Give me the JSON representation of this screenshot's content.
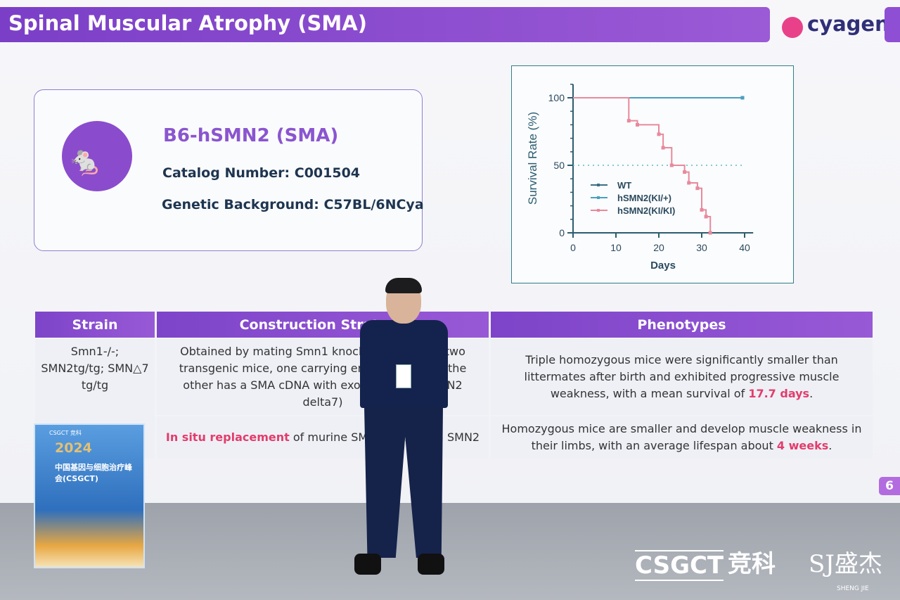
{
  "slide": {
    "title": "Spinal Muscular Atrophy (SMA)",
    "logo_text": "cyagen",
    "model_name": "B6-hSMN2 (SMA)",
    "catalog": "Catalog Number: C001504",
    "background": "Genetic Background: C57BL/6NCya",
    "page_number": "6",
    "table": {
      "headers": [
        "Strain",
        "Construction Strategy",
        "Phenotypes"
      ],
      "rows": [
        {
          "strain": "Smn1-/-; SMN2tg/tg; SMN△7 tg/tg",
          "strategy": "Obtained by mating Smn1 knockout mice with two transgenic mice, one carrying entire SMN2 and the other has a SMA cDNA with exon 7 lacking (SMN2 delta7)",
          "phenotype_pre": "Triple homozygous mice were significantly smaller than littermates after birth and exhibited progressive muscle weakness, with a mean survival of ",
          "phenotype_hl": "17.7 days",
          "phenotype_post": "."
        },
        {
          "strain": "",
          "strategy_hl": "In situ replacement",
          "strategy": " of murine SMN1 by human SMN2",
          "phenotype_pre": "Homozygous mice are smaller and develop muscle weakness in their limbs, with an average lifespan about ",
          "phenotype_hl": "4 weeks",
          "phenotype_post": "."
        }
      ]
    }
  },
  "chart_data": {
    "type": "line",
    "subtype": "kaplan-meier step",
    "xlabel": "Days",
    "ylabel": "Survival Rate (%)",
    "xlim": [
      0,
      42
    ],
    "ylim": [
      0,
      110
    ],
    "xticks": [
      "0",
      "10",
      "20",
      "30",
      "40"
    ],
    "yticks": [
      "0",
      "50",
      "100"
    ],
    "reference_line_y": 50,
    "legend_position": "lower-left",
    "series": [
      {
        "name": "WT",
        "color": "#3a6f86",
        "x": [
          0,
          39.5
        ],
        "y": [
          100,
          100
        ]
      },
      {
        "name": "hSMN2(KI/+)",
        "color": "#4a9fc0",
        "x": [
          0,
          39.5
        ],
        "y": [
          100,
          100
        ]
      },
      {
        "name": "hSMN2(KI/KI)",
        "color": "#e8899c",
        "x": [
          0,
          13,
          15,
          20,
          21,
          23,
          26,
          27,
          29,
          30,
          31,
          32
        ],
        "y": [
          100,
          83,
          80,
          73,
          63,
          50,
          45,
          37,
          33,
          17,
          12,
          0
        ]
      }
    ]
  },
  "venue": {
    "podium_year": "2024",
    "podium_title": "中国基因与细胞治疗峰会(CSGCT)",
    "podium_header": "CSGCT 竞科",
    "sponsors": [
      "CSGCT",
      "竞科",
      "SJ盛杰"
    ],
    "sponsor_sub": "SHENG JIE"
  }
}
